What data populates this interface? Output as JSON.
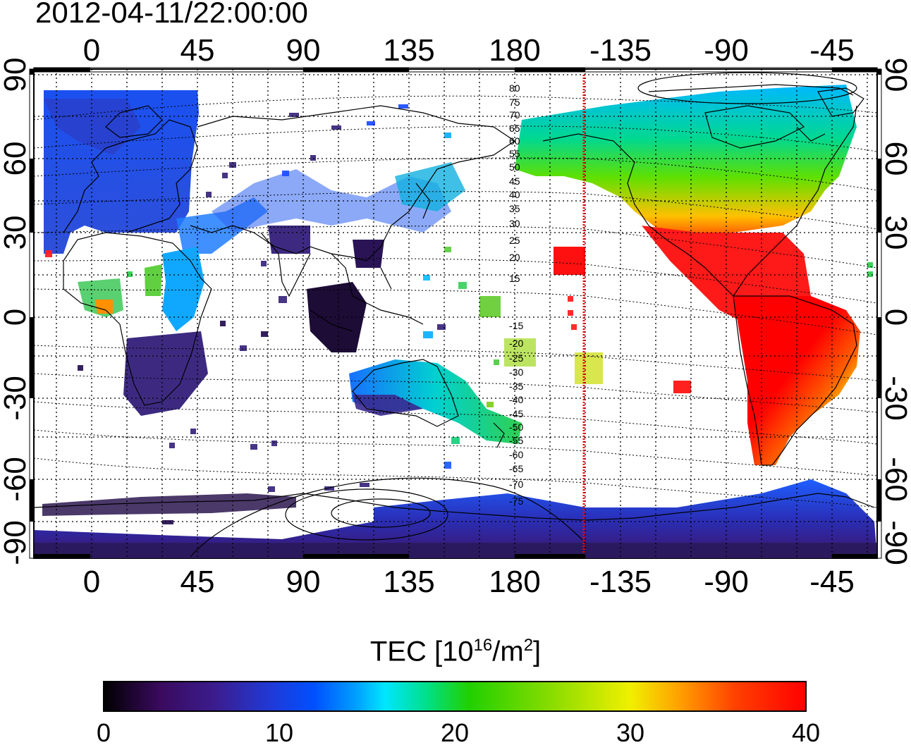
{
  "title": "2012-04-11/22:00:00",
  "map": {
    "lon_labels": [
      "0",
      "45",
      "90",
      "135",
      "180",
      "-135",
      "-90",
      "-45"
    ],
    "lat_labels": [
      "90",
      "60",
      "30",
      "0",
      "-30",
      "-60",
      "-90"
    ],
    "terminator_line_color": "#ff0000",
    "contour_labels": [
      "80",
      "75",
      "70",
      "65",
      "60",
      "55",
      "50",
      "45",
      "40",
      "35",
      "30",
      "25",
      "20",
      "15",
      "-15",
      "-20",
      "-25",
      "-30",
      "-35",
      "-40",
      "-45",
      "-50",
      "-55",
      "-60",
      "-65",
      "-70",
      "-75"
    ]
  },
  "colorbar": {
    "label_main": "TEC  [10",
    "label_exp": "16",
    "label_mid": "/m",
    "label_exp2": "2",
    "label_end": "]",
    "tick_labels": [
      "0",
      "10",
      "20",
      "30",
      "40"
    ],
    "range": [
      0,
      40
    ],
    "colormap": [
      "#000000",
      "#3a0a5e",
      "#3b1d8f",
      "#1f3ad8",
      "#0050ff",
      "#00a0ff",
      "#00e6ff",
      "#00e08a",
      "#20d000",
      "#8cdc00",
      "#f0f000",
      "#ffa000",
      "#ff4000",
      "#ff0000"
    ]
  }
}
